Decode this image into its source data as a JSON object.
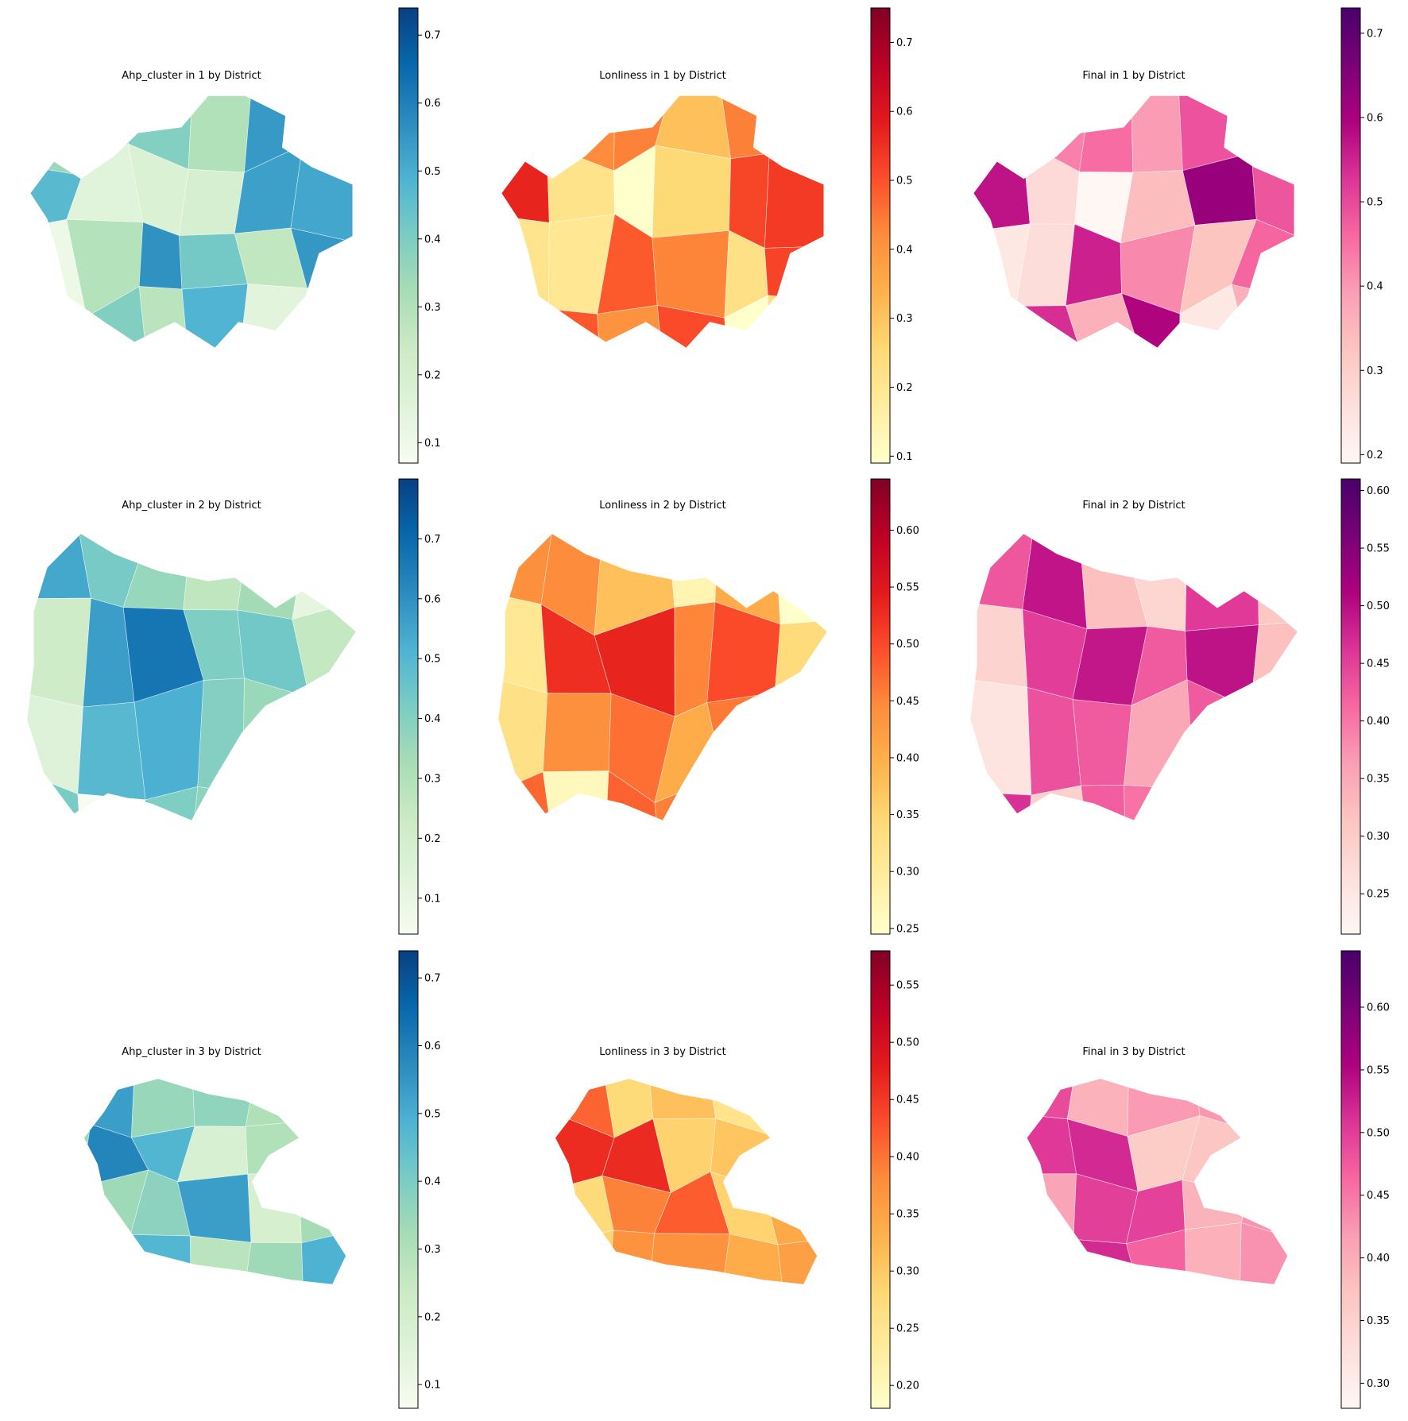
{
  "figure": {
    "panels": [
      {
        "title": "Ahp_cluster in 1 by District",
        "cmap": "blues",
        "ticks": [
          "0.1",
          "0.2",
          "0.3",
          "0.4",
          "0.5",
          "0.6",
          "0.7"
        ],
        "vmin": 0.07,
        "vmax": 0.74
      },
      {
        "title": "Lonliness in 1 by District",
        "cmap": "reds",
        "ticks": [
          "0.1",
          "0.2",
          "0.3",
          "0.4",
          "0.5",
          "0.6",
          "0.7"
        ],
        "vmin": 0.09,
        "vmax": 0.75
      },
      {
        "title": "Final in 1 by District",
        "cmap": "purples",
        "ticks": [
          "0.2",
          "0.3",
          "0.4",
          "0.5",
          "0.6",
          "0.7"
        ],
        "vmin": 0.19,
        "vmax": 0.73
      },
      {
        "title": "Ahp_cluster in 2 by District",
        "cmap": "blues",
        "ticks": [
          "0.1",
          "0.2",
          "0.3",
          "0.4",
          "0.5",
          "0.6",
          "0.7"
        ],
        "vmin": 0.04,
        "vmax": 0.8
      },
      {
        "title": "Lonliness in 2 by District",
        "cmap": "reds",
        "ticks": [
          "0.25",
          "0.30",
          "0.35",
          "0.40",
          "0.45",
          "0.50",
          "0.55",
          "0.60"
        ],
        "vmin": 0.245,
        "vmax": 0.645
      },
      {
        "title": "Final in 2 by District",
        "cmap": "purples",
        "ticks": [
          "0.25",
          "0.30",
          "0.35",
          "0.40",
          "0.45",
          "0.50",
          "0.55",
          "0.60"
        ],
        "vmin": 0.215,
        "vmax": 0.61
      },
      {
        "title": "Ahp_cluster in 3 by District",
        "cmap": "blues",
        "ticks": [
          "0.1",
          "0.2",
          "0.3",
          "0.4",
          "0.5",
          "0.6",
          "0.7"
        ],
        "vmin": 0.065,
        "vmax": 0.74
      },
      {
        "title": "Lonliness in 3 by District",
        "cmap": "reds",
        "ticks": [
          "0.20",
          "0.25",
          "0.30",
          "0.35",
          "0.40",
          "0.45",
          "0.50",
          "0.55"
        ],
        "vmin": 0.18,
        "vmax": 0.58
      },
      {
        "title": "Final in 3 by District",
        "cmap": "purples",
        "ticks": [
          "0.30",
          "0.35",
          "0.40",
          "0.45",
          "0.50",
          "0.55",
          "0.60"
        ],
        "vmin": 0.28,
        "vmax": 0.645
      }
    ]
  },
  "colormaps": {
    "blues": [
      "#f7fcf0",
      "#e0f3db",
      "#ccebc5",
      "#a8ddb5",
      "#7bccc4",
      "#4eb3d3",
      "#2b8cbe",
      "#0868ac",
      "#084081"
    ],
    "reds": [
      "#ffffcc",
      "#ffeda0",
      "#fed976",
      "#feb24c",
      "#fd8d3c",
      "#fc4e2a",
      "#e31a1c",
      "#bd0026",
      "#800026"
    ],
    "purples": [
      "#fff7f3",
      "#fde0dd",
      "#fcc5c0",
      "#fa9fb5",
      "#f768a1",
      "#dd3497",
      "#ae017e",
      "#7a0177",
      "#49006a"
    ]
  }
}
